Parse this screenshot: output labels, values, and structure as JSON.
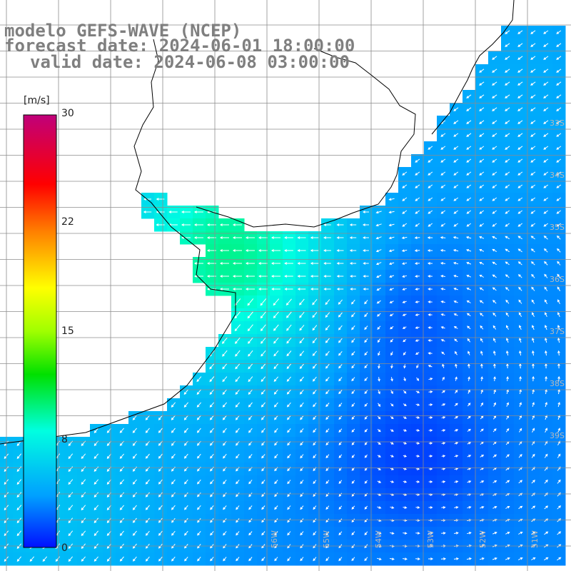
{
  "title": {
    "line1": "modelo GEFS-WAVE (NCEP)",
    "line2": "forecast date: 2024-06-01 18:00:00",
    "line3": "valid date: 2024-06-08 03:00:00"
  },
  "colorbar": {
    "unit": "[m/s]",
    "ticks": [
      "30",
      "22",
      "15",
      "8",
      "0"
    ],
    "tick_values": [
      30,
      22,
      15,
      8,
      0
    ],
    "min": 0,
    "max": 30
  },
  "lat_labels": [
    "33S",
    "34S",
    "35S",
    "36S",
    "37S",
    "38S",
    "39S"
  ],
  "lon_labels": [
    "56W",
    "55W",
    "54W",
    "53W",
    "52W",
    "51W"
  ],
  "colors": {
    "land": "#ffffff",
    "grid": "#8c8c8c",
    "coast": "#000000",
    "arrow": "#ffffff",
    "title": "#7f7f7f"
  },
  "chart_data": {
    "type": "heatmap",
    "variable": "wind speed with wind direction arrows",
    "units": "m/s",
    "color_range": [
      0,
      30
    ],
    "typical_values": {
      "nearshore_uruguay": 8,
      "open_ocean": 3,
      "southwest": 5
    }
  }
}
